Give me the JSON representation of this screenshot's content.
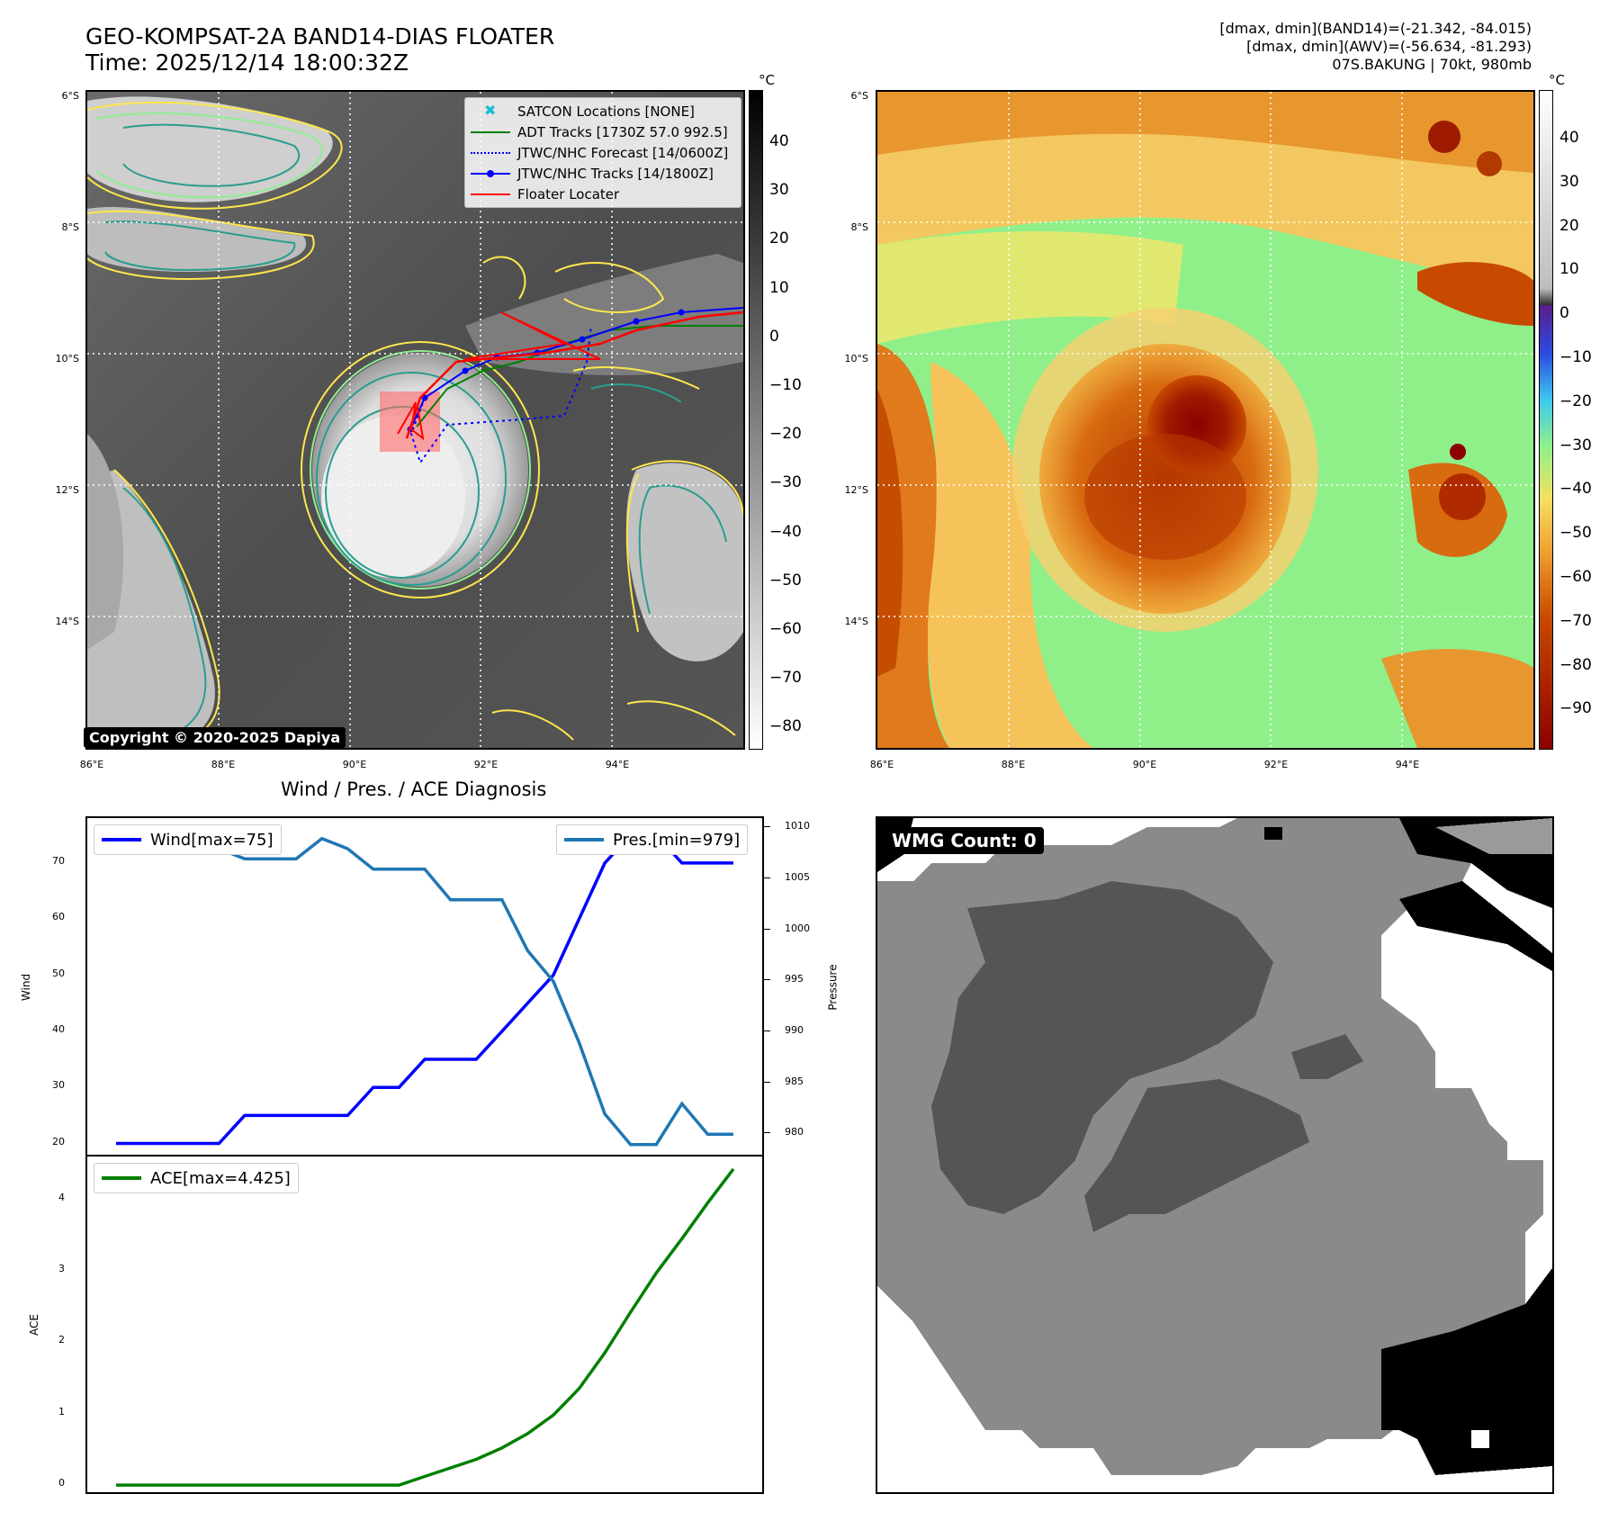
{
  "header": {
    "title_line1": "GEO-KOMPSAT-2A BAND14-DIAS FLOATER",
    "title_line2": "Time: 2025/12/14 18:00:32Z",
    "info_line1": "[dmax, dmin](BAND14)=(-21.342, -84.015)",
    "info_line2": "[dmax, dmin](AWV)=(-56.634, -81.293)",
    "info_line3": "07S.BAKUNG | 70kt, 980mb"
  },
  "map_axes": {
    "lat_ticks": [
      "6°S",
      "8°S",
      "10°S",
      "12°S",
      "14°S"
    ],
    "lon_ticks": [
      "86°E",
      "88°E",
      "90°E",
      "92°E",
      "94°E"
    ]
  },
  "colorbar_left": {
    "unit": "°C",
    "ticks": [
      "40",
      "30",
      "20",
      "10",
      "0",
      "−10",
      "−20",
      "−30",
      "−40",
      "−50",
      "−60",
      "−70",
      "−80"
    ]
  },
  "colorbar_right": {
    "unit": "°C",
    "ticks": [
      "40",
      "30",
      "20",
      "10",
      "0",
      "−10",
      "−20",
      "−30",
      "−40",
      "−50",
      "−60",
      "−70",
      "−80",
      "−90"
    ]
  },
  "legend": {
    "items": [
      {
        "label": "SATCON Locations [NONE]",
        "color": "#17becf"
      },
      {
        "label": "ADT Tracks [1730Z 57.0 992.5]",
        "color": "#008000"
      },
      {
        "label": "JTWC/NHC Forecast [14/0600Z]",
        "color": "#0000ff"
      },
      {
        "label": "JTWC/NHC Tracks [14/1800Z]",
        "color": "#0000ff"
      },
      {
        "label": "Floater Locater",
        "color": "#ff0000"
      }
    ]
  },
  "copyright": "Copyright © 2020-2025 Dapiya",
  "wmg_badge": "WMG Count: 0",
  "chart_data": [
    {
      "type": "line",
      "title": "Wind / Pres. / ACE Diagnosis",
      "ylabel": "Wind",
      "ylabel_right": "Pressure",
      "ylim": [
        18,
        78
      ],
      "ylim_right": [
        978,
        1011
      ],
      "yticks": [
        20,
        30,
        40,
        50,
        60,
        70
      ],
      "yticks_right": [
        980,
        985,
        990,
        995,
        1000,
        1005,
        1010
      ],
      "x": [
        0,
        1,
        2,
        3,
        4,
        5,
        6,
        7,
        8,
        9,
        10,
        11,
        12,
        13,
        14,
        15,
        16,
        17,
        18,
        19,
        20,
        21,
        22,
        23,
        24
      ],
      "series": [
        {
          "name": "Wind[max=75]",
          "color": "#0000ff",
          "axis": "left",
          "values": [
            20,
            20,
            20,
            20,
            20,
            25,
            25,
            25,
            25,
            25,
            30,
            30,
            35,
            35,
            35,
            40,
            45,
            50,
            60,
            70,
            75,
            75,
            70,
            70,
            70
          ]
        },
        {
          "name": "Pres.[min=979]",
          "color": "#1f77b4",
          "axis": "right",
          "values": [
            1008,
            1008,
            1008,
            1008,
            1008,
            1007,
            1007,
            1007,
            1009,
            1008,
            1006,
            1006,
            1006,
            1003,
            1003,
            1003,
            998,
            995,
            989,
            982,
            979,
            979,
            983,
            980,
            980
          ]
        }
      ]
    },
    {
      "type": "line",
      "ylabel": "ACE",
      "ylim": [
        -0.1,
        4.6
      ],
      "yticks": [
        0,
        1,
        2,
        3,
        4
      ],
      "x": [
        0,
        1,
        2,
        3,
        4,
        5,
        6,
        7,
        8,
        9,
        10,
        11,
        12,
        13,
        14,
        15,
        16,
        17,
        18,
        19,
        20,
        21,
        22,
        23,
        24
      ],
      "series": [
        {
          "name": "ACE[max=4.425]",
          "color": "#008000",
          "values": [
            0,
            0,
            0,
            0,
            0,
            0,
            0,
            0,
            0,
            0,
            0,
            0,
            0.12,
            0.24,
            0.36,
            0.52,
            0.72,
            0.98,
            1.35,
            1.85,
            2.42,
            2.97,
            3.45,
            3.95,
            4.425
          ]
        }
      ]
    }
  ]
}
